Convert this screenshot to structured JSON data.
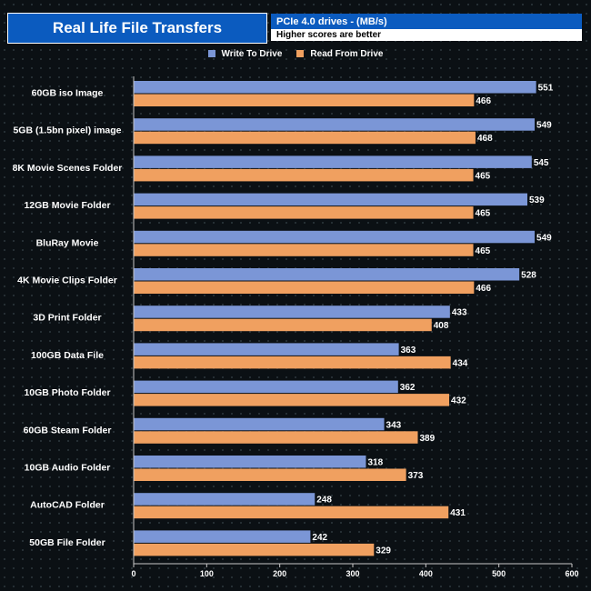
{
  "chart_data": {
    "type": "bar",
    "orientation": "horizontal",
    "title": "Real Life File Transfers",
    "subtitle": "PCIe 4.0 drives - (MB/s)",
    "note": "Higher scores are better",
    "categories": [
      "60GB iso Image",
      "5GB (1.5bn pixel) image",
      "8K Movie Scenes Folder",
      "12GB Movie Folder",
      "BluRay Movie",
      "4K Movie Clips Folder",
      "3D Print Folder",
      "100GB Data File",
      "10GB Photo Folder",
      "60GB Steam Folder",
      "10GB Audio Folder",
      "AutoCAD Folder",
      "50GB File Folder"
    ],
    "series": [
      {
        "name": "Write To  Drive",
        "color": "#7b96d6",
        "values": [
          551,
          549,
          545,
          539,
          549,
          528,
          433,
          363,
          362,
          343,
          318,
          248,
          242
        ]
      },
      {
        "name": "Read From  Drive",
        "color": "#f0a060",
        "values": [
          466,
          468,
          465,
          465,
          465,
          466,
          408,
          434,
          432,
          389,
          373,
          431,
          329
        ]
      }
    ],
    "xlim": [
      0,
      600
    ],
    "xticks": [
      "0",
      "100",
      "200",
      "300",
      "400",
      "500",
      "600"
    ],
    "legend_position": "top-center",
    "grid": false
  }
}
